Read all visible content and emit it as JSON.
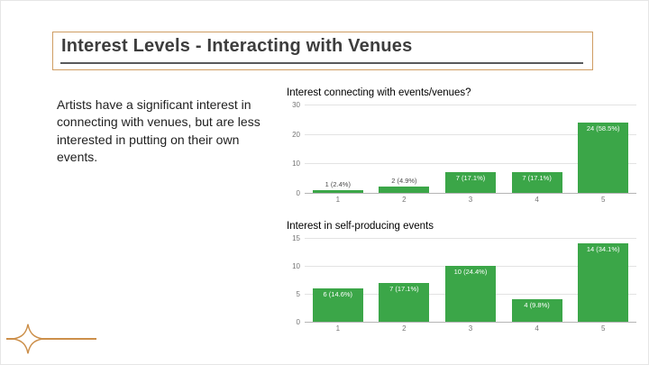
{
  "slide": {
    "title": "Interest Levels - Interacting with Venues",
    "body_text": "Artists have a significant interest in connecting with venues, but are less interested in putting on their own events.",
    "accent_color": "#cf9d63",
    "underline_color": "#58595b",
    "bar_color": "#3ba648"
  },
  "chart_data": [
    {
      "type": "bar",
      "title": "Interest connecting with events/venues?",
      "categories": [
        "1",
        "2",
        "3",
        "4",
        "5"
      ],
      "values": [
        1,
        2,
        7,
        7,
        24
      ],
      "labels": [
        "1 (2.4%)",
        "2 (4.9%)",
        "7 (17.1%)",
        "7 (17.1%)",
        "24 (58.5%)"
      ],
      "ylim": [
        0,
        30
      ],
      "yticks": [
        0,
        10,
        20,
        30
      ],
      "grid": true,
      "legend": "none"
    },
    {
      "type": "bar",
      "title": "Interest in self-producing events",
      "categories": [
        "1",
        "2",
        "3",
        "4",
        "5"
      ],
      "values": [
        6,
        7,
        10,
        4,
        14
      ],
      "labels": [
        "6 (14.6%)",
        "7 (17.1%)",
        "10 (24.4%)",
        "4 (9.8%)",
        "14 (34.1%)"
      ],
      "ylim": [
        0,
        15
      ],
      "yticks": [
        0,
        5,
        10,
        15
      ],
      "grid": true,
      "legend": "none"
    }
  ]
}
